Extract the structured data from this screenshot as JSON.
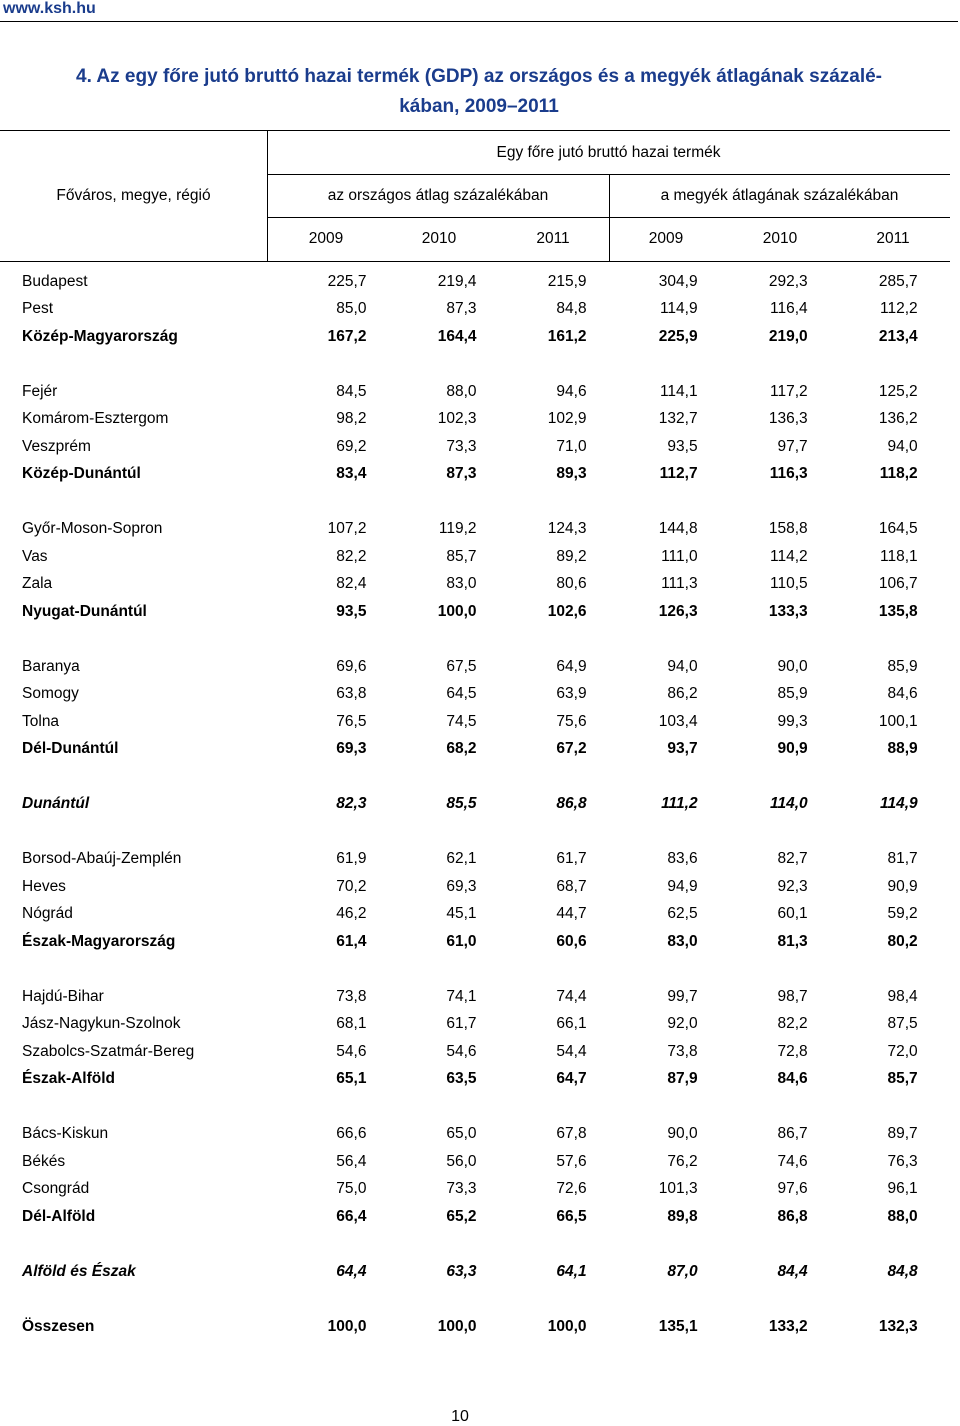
{
  "site": "www.ksh.hu",
  "title_line1": "4. Az egy főre jutó bruttó hazai termék (GDP) az országos és a megyék átlagának százalé-",
  "title_line2": "kában, 2009–2011",
  "header": {
    "group": "Egy főre jutó bruttó hazai termék",
    "row_label": "Főváros, megye, régió",
    "sub_national": "az országos átlag százalékában",
    "sub_county": "a megyék átlagának százalékában",
    "years": [
      "2009",
      "2010",
      "2011",
      "2009",
      "2010",
      "2011"
    ]
  },
  "rows": [
    {
      "label": "Budapest",
      "values": [
        "225,7",
        "219,4",
        "215,9",
        "304,9",
        "292,3",
        "285,7"
      ],
      "style": "normal"
    },
    {
      "label": "Pest",
      "values": [
        "85,0",
        "87,3",
        "84,8",
        "114,9",
        "116,4",
        "112,2"
      ],
      "style": "normal"
    },
    {
      "label": "Közép-Magyarország",
      "values": [
        "167,2",
        "164,4",
        "161,2",
        "225,9",
        "219,0",
        "213,4"
      ],
      "style": "bold"
    },
    {
      "spacer": true
    },
    {
      "label": "Fejér",
      "values": [
        "84,5",
        "88,0",
        "94,6",
        "114,1",
        "117,2",
        "125,2"
      ],
      "style": "normal"
    },
    {
      "label": "Komárom-Esztergom",
      "values": [
        "98,2",
        "102,3",
        "102,9",
        "132,7",
        "136,3",
        "136,2"
      ],
      "style": "normal"
    },
    {
      "label": "Veszprém",
      "values": [
        "69,2",
        "73,3",
        "71,0",
        "93,5",
        "97,7",
        "94,0"
      ],
      "style": "normal"
    },
    {
      "label": "Közép-Dunántúl",
      "values": [
        "83,4",
        "87,3",
        "89,3",
        "112,7",
        "116,3",
        "118,2"
      ],
      "style": "bold"
    },
    {
      "spacer": true
    },
    {
      "label": "Győr-Moson-Sopron",
      "values": [
        "107,2",
        "119,2",
        "124,3",
        "144,8",
        "158,8",
        "164,5"
      ],
      "style": "normal"
    },
    {
      "label": "Vas",
      "values": [
        "82,2",
        "85,7",
        "89,2",
        "111,0",
        "114,2",
        "118,1"
      ],
      "style": "normal"
    },
    {
      "label": "Zala",
      "values": [
        "82,4",
        "83,0",
        "80,6",
        "111,3",
        "110,5",
        "106,7"
      ],
      "style": "normal"
    },
    {
      "label": "Nyugat-Dunántúl",
      "values": [
        "93,5",
        "100,0",
        "102,6",
        "126,3",
        "133,3",
        "135,8"
      ],
      "style": "bold"
    },
    {
      "spacer": true
    },
    {
      "label": "Baranya",
      "values": [
        "69,6",
        "67,5",
        "64,9",
        "94,0",
        "90,0",
        "85,9"
      ],
      "style": "normal"
    },
    {
      "label": "Somogy",
      "values": [
        "63,8",
        "64,5",
        "63,9",
        "86,2",
        "85,9",
        "84,6"
      ],
      "style": "normal"
    },
    {
      "label": "Tolna",
      "values": [
        "76,5",
        "74,5",
        "75,6",
        "103,4",
        "99,3",
        "100,1"
      ],
      "style": "normal"
    },
    {
      "label": "Dél-Dunántúl",
      "values": [
        "69,3",
        "68,2",
        "67,2",
        "93,7",
        "90,9",
        "88,9"
      ],
      "style": "bold"
    },
    {
      "spacer": true
    },
    {
      "label": "Dunántúl",
      "values": [
        "82,3",
        "85,5",
        "86,8",
        "111,2",
        "114,0",
        "114,9"
      ],
      "style": "ital"
    },
    {
      "spacer": true
    },
    {
      "label": "Borsod-Abaúj-Zemplén",
      "values": [
        "61,9",
        "62,1",
        "61,7",
        "83,6",
        "82,7",
        "81,7"
      ],
      "style": "normal"
    },
    {
      "label": "Heves",
      "values": [
        "70,2",
        "69,3",
        "68,7",
        "94,9",
        "92,3",
        "90,9"
      ],
      "style": "normal"
    },
    {
      "label": "Nógrád",
      "values": [
        "46,2",
        "45,1",
        "44,7",
        "62,5",
        "60,1",
        "59,2"
      ],
      "style": "normal"
    },
    {
      "label": "Észak-Magyarország",
      "values": [
        "61,4",
        "61,0",
        "60,6",
        "83,0",
        "81,3",
        "80,2"
      ],
      "style": "bold"
    },
    {
      "spacer": true
    },
    {
      "label": "Hajdú-Bihar",
      "values": [
        "73,8",
        "74,1",
        "74,4",
        "99,7",
        "98,7",
        "98,4"
      ],
      "style": "normal"
    },
    {
      "label": "Jász-Nagykun-Szolnok",
      "values": [
        "68,1",
        "61,7",
        "66,1",
        "92,0",
        "82,2",
        "87,5"
      ],
      "style": "normal"
    },
    {
      "label": "Szabolcs-Szatmár-Bereg",
      "values": [
        "54,6",
        "54,6",
        "54,4",
        "73,8",
        "72,8",
        "72,0"
      ],
      "style": "normal"
    },
    {
      "label": "Észak-Alföld",
      "values": [
        "65,1",
        "63,5",
        "64,7",
        "87,9",
        "84,6",
        "85,7"
      ],
      "style": "bold"
    },
    {
      "spacer": true
    },
    {
      "label": "Bács-Kiskun",
      "values": [
        "66,6",
        "65,0",
        "67,8",
        "90,0",
        "86,7",
        "89,7"
      ],
      "style": "normal"
    },
    {
      "label": "Békés",
      "values": [
        "56,4",
        "56,0",
        "57,6",
        "76,2",
        "74,6",
        "76,3"
      ],
      "style": "normal"
    },
    {
      "label": "Csongrád",
      "values": [
        "75,0",
        "73,3",
        "72,6",
        "101,3",
        "97,6",
        "96,1"
      ],
      "style": "normal"
    },
    {
      "label": "Dél-Alföld",
      "values": [
        "66,4",
        "65,2",
        "66,5",
        "89,8",
        "86,8",
        "88,0"
      ],
      "style": "bold"
    },
    {
      "spacer": true
    },
    {
      "label": "Alföld és Észak",
      "values": [
        "64,4",
        "63,3",
        "64,1",
        "87,0",
        "84,4",
        "84,8"
      ],
      "style": "ital"
    },
    {
      "spacer": true
    },
    {
      "label": "Összesen",
      "values": [
        "100,0",
        "100,0",
        "100,0",
        "135,1",
        "133,2",
        "132,3"
      ],
      "style": "bold"
    }
  ],
  "page_number": "10"
}
